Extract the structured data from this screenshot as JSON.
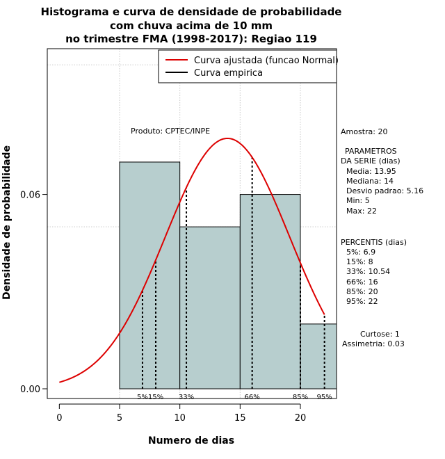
{
  "chart_data": {
    "type": "bar",
    "title": [
      "Histograma e curva de densidade de probabilidade",
      "com chuva acima de 10 mm",
      "no trimestre FMA (1998-2017): Regiao 119"
    ],
    "xlabel": "Numero de dias",
    "ylabel": "Densidade de probabilidade",
    "xlim": [
      -1,
      23
    ],
    "ylim": [
      -0.003,
      0.105
    ],
    "x_ticks": [
      0,
      5,
      10,
      15,
      20
    ],
    "x_tick_labels": [
      "0",
      "5",
      "10",
      "15",
      "20"
    ],
    "y_ticks": [
      0.0,
      0.06
    ],
    "y_tick_labels": [
      "0.00",
      "0.06"
    ],
    "grid": true,
    "grid_x": [
      5,
      10,
      15,
      20
    ],
    "grid_y": [
      0.05,
      0.1
    ],
    "histogram": {
      "bins": [
        {
          "from": 5,
          "to": 10,
          "density": 0.07
        },
        {
          "from": 10,
          "to": 15,
          "density": 0.05
        },
        {
          "from": 15,
          "to": 20,
          "density": 0.06
        },
        {
          "from": 20,
          "to": 23,
          "density": 0.02
        }
      ],
      "fill": "#b7cece",
      "stroke": "#000000"
    },
    "normal_curve": {
      "label": "Curva ajustada (funcao Normal)",
      "mean": 13.95,
      "sd": 5.16,
      "x_from": 0,
      "x_to": 22,
      "color": "#dd0000"
    },
    "legend": {
      "position": "top-right",
      "entries": [
        {
          "label": "Curva ajustada (funcao Normal)",
          "color": "#dd0000"
        },
        {
          "label": "Curva empirica",
          "color": "#000000"
        }
      ]
    },
    "percentile_lines": [
      {
        "label": "5%",
        "x": 6.9
      },
      {
        "label": "15%",
        "x": 8
      },
      {
        "label": "33%",
        "x": 10.54
      },
      {
        "label": "66%",
        "x": 16
      },
      {
        "label": "85%",
        "x": 20
      },
      {
        "label": "95%",
        "x": 22
      }
    ],
    "product_label": "Produto: CPTEC/INPE",
    "stats": {
      "amostra": "Amostra: 20",
      "parametros_title": "PARAMETROS",
      "parametros_sub": "DA SERIE (dias)",
      "media": "Media: 13.95",
      "mediana": "Mediana: 14",
      "desvio": "Desvio padrao: 5.16",
      "min": "Min: 5",
      "max": "Max: 22",
      "percentis_title": "PERCENTIS (dias)",
      "p5": "5%: 6.9",
      "p15": "15%: 8",
      "p33": "33%: 10.54",
      "p66": "66%: 16",
      "p85": "85%: 20",
      "p95": "95%: 22",
      "curtose": "Curtose: 1",
      "assimetria": "Assimetria: 0.03"
    }
  }
}
